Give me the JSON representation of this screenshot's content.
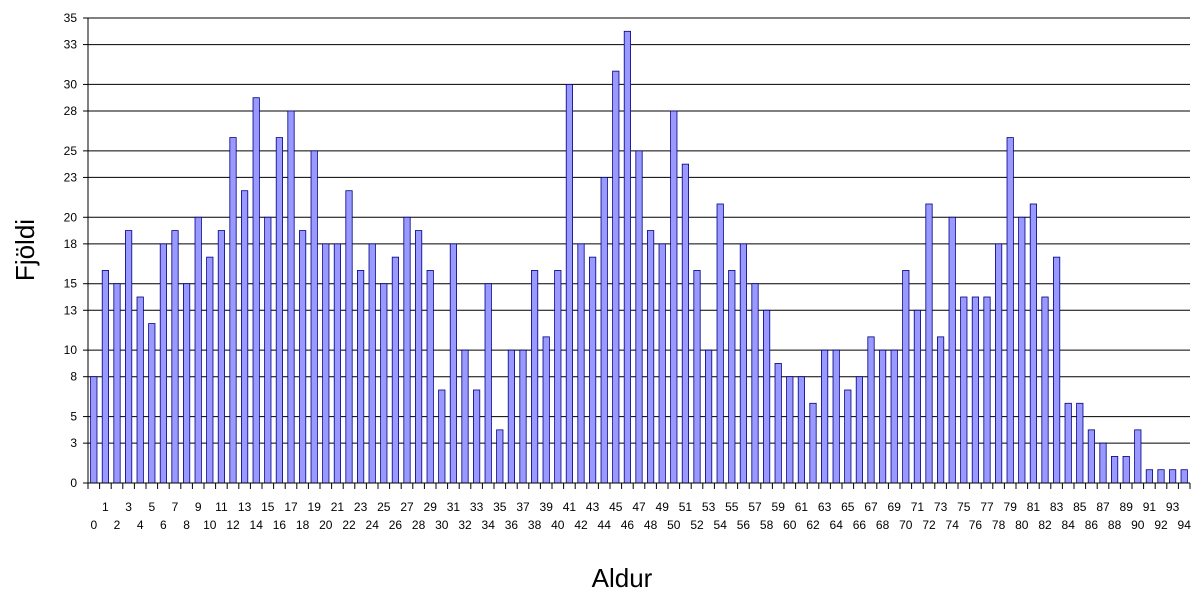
{
  "chart_data": {
    "type": "bar",
    "title": "",
    "xlabel": "Aldur",
    "ylabel": "Fjöldi",
    "ylim": [
      0,
      35
    ],
    "yticks": [
      0,
      3,
      5,
      8,
      10,
      13,
      15,
      18,
      20,
      23,
      25,
      28,
      30,
      33,
      35
    ],
    "grid": "horizontal",
    "legend": "none",
    "bar_color": "#9999ff",
    "bar_edge_color": "#000080",
    "categories": [
      "0",
      "1",
      "2",
      "3",
      "4",
      "5",
      "6",
      "7",
      "8",
      "9",
      "10",
      "11",
      "12",
      "13",
      "14",
      "15",
      "16",
      "17",
      "18",
      "19",
      "20",
      "21",
      "22",
      "23",
      "24",
      "25",
      "26",
      "27",
      "28",
      "29",
      "30",
      "31",
      "32",
      "33",
      "34",
      "35",
      "36",
      "37",
      "38",
      "39",
      "40",
      "41",
      "42",
      "43",
      "44",
      "45",
      "46",
      "47",
      "48",
      "49",
      "50",
      "51",
      "52",
      "53",
      "54",
      "55",
      "56",
      "57",
      "58",
      "59",
      "60",
      "61",
      "62",
      "63",
      "64",
      "65",
      "66",
      "67",
      "68",
      "69",
      "70",
      "71",
      "72",
      "73",
      "74",
      "75",
      "76",
      "77",
      "78",
      "79",
      "80",
      "81",
      "82",
      "83",
      "84",
      "85",
      "86",
      "87",
      "88",
      "89",
      "90",
      "91",
      "92",
      "93",
      "94"
    ],
    "values": [
      8,
      16,
      15,
      19,
      14,
      12,
      18,
      19,
      15,
      20,
      17,
      19,
      26,
      22,
      29,
      20,
      26,
      28,
      19,
      25,
      18,
      18,
      22,
      16,
      18,
      15,
      17,
      20,
      19,
      16,
      7,
      18,
      10,
      7,
      15,
      4,
      10,
      10,
      16,
      11,
      16,
      30,
      18,
      17,
      23,
      31,
      34,
      25,
      19,
      18,
      28,
      24,
      16,
      10,
      21,
      16,
      18,
      15,
      13,
      9,
      8,
      8,
      6,
      10,
      10,
      7,
      8,
      11,
      10,
      10,
      16,
      13,
      21,
      11,
      20,
      14,
      14,
      14,
      18,
      26,
      20,
      21,
      14,
      17,
      6,
      6,
      4,
      3,
      2,
      2,
      4,
      1,
      1,
      1,
      1
    ]
  }
}
